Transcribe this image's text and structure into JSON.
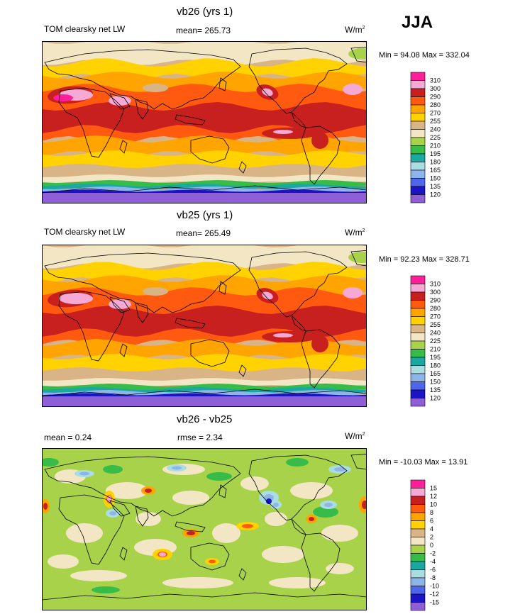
{
  "season": "JJA",
  "colors": {
    "palette_main": [
      "#8e5fd6",
      "#1a14c4",
      "#4f66e8",
      "#8fb4ec",
      "#a9dde2",
      "#1aa8a0",
      "#37bc4a",
      "#a8d24a",
      "#f3e6c4",
      "#d9b487",
      "#ffd200",
      "#ffa400",
      "#ff5a10",
      "#c8201e",
      "#f7a9d6",
      "#ff1f9a"
    ],
    "palette_diff": [
      "#8e5fd6",
      "#1a14c4",
      "#4f66e8",
      "#8fb4ec",
      "#a9dde2",
      "#1aa8a0",
      "#37bc4a",
      "#a8d24a",
      "#f3e6c4",
      "#d9b487",
      "#ffd200",
      "#ffa400",
      "#ff5a10",
      "#c8201e",
      "#f7a9d6",
      "#ff1f9a"
    ]
  },
  "panels": [
    {
      "title": "vb26 (yrs 1)",
      "left_label": "TOM clearsky net LW",
      "center_label": "mean= 265.73",
      "units": "W/m",
      "units_sup": "2",
      "minmax": "Min =  94.08 Max = 332.04"
    },
    {
      "title": "vb25 (yrs 1)",
      "left_label": "TOM clearsky net LW",
      "center_label": "mean= 265.49",
      "units": "W/m",
      "units_sup": "2",
      "minmax": "Min =  92.23 Max = 328.71"
    },
    {
      "title": "vb26 - vb25",
      "left_label": "mean =   0.24",
      "center_label": "rmse =   2.34",
      "units": "W/m",
      "units_sup": "2",
      "minmax": "Min = -10.03 Max =  13.91"
    }
  ],
  "chart_data": [
    {
      "type": "heatmap",
      "title": "vb26 (yrs 1)",
      "variable": "TOM clearsky net LW",
      "season": "JJA",
      "mean": 265.73,
      "min": 94.08,
      "max": 332.04,
      "units": "W/m2",
      "contour_levels": [
        120,
        135,
        150,
        165,
        180,
        195,
        210,
        225,
        240,
        255,
        270,
        280,
        290,
        300,
        310
      ],
      "legend_labels": [
        "310",
        "300",
        "290",
        "280",
        "270",
        "255",
        "240",
        "225",
        "210",
        "195",
        "180",
        "165",
        "150",
        "135",
        "120"
      ]
    },
    {
      "type": "heatmap",
      "title": "vb25 (yrs 1)",
      "variable": "TOM clearsky net LW",
      "season": "JJA",
      "mean": 265.49,
      "min": 92.23,
      "max": 328.71,
      "units": "W/m2",
      "contour_levels": [
        120,
        135,
        150,
        165,
        180,
        195,
        210,
        225,
        240,
        255,
        270,
        280,
        290,
        300,
        310
      ],
      "legend_labels": [
        "310",
        "300",
        "290",
        "280",
        "270",
        "255",
        "240",
        "225",
        "210",
        "195",
        "180",
        "165",
        "150",
        "135",
        "120"
      ]
    },
    {
      "type": "heatmap",
      "title": "vb26 - vb25",
      "season": "JJA",
      "mean": 0.24,
      "rmse": 2.34,
      "min": -10.03,
      "max": 13.91,
      "units": "W/m2",
      "contour_levels": [
        -15,
        -12,
        -10,
        -8,
        -6,
        -4,
        -2,
        0,
        2,
        4,
        6,
        8,
        10,
        12,
        15
      ],
      "legend_labels": [
        "15",
        "12",
        "10",
        "8",
        "6",
        "4",
        "2",
        "0",
        "-2",
        "-4",
        "-6",
        "-8",
        "-10",
        "-12",
        "-15"
      ]
    }
  ]
}
